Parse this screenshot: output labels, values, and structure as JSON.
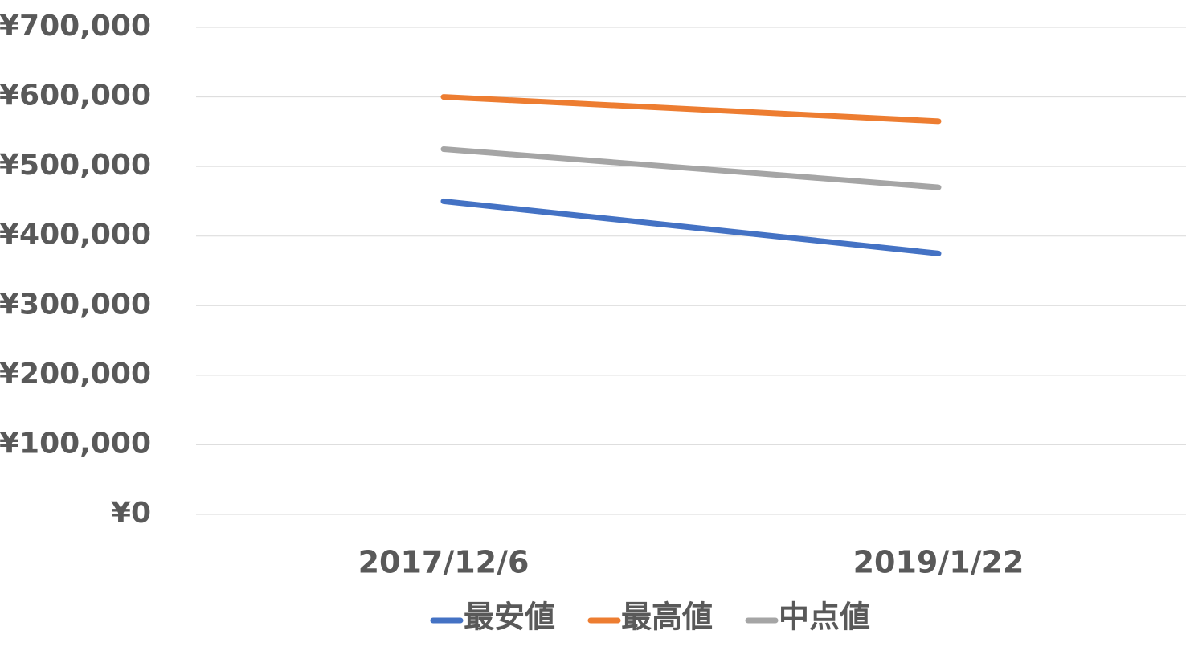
{
  "chart_data": {
    "type": "line",
    "categories": [
      "2017/12/6",
      "2019/1/22"
    ],
    "series": [
      {
        "name": "最安値",
        "color": "#4472c4",
        "values": [
          450000,
          375000
        ]
      },
      {
        "name": "最高値",
        "color": "#ed7d31",
        "values": [
          600000,
          565000
        ]
      },
      {
        "name": "中点値",
        "color": "#a5a5a5",
        "values": [
          525000,
          470000
        ]
      }
    ],
    "ylim": [
      0,
      700000
    ],
    "yticks": [
      {
        "value": 0,
        "label": "¥0"
      },
      {
        "value": 100000,
        "label": "¥100,000"
      },
      {
        "value": 200000,
        "label": "¥200,000"
      },
      {
        "value": 300000,
        "label": "¥300,000"
      },
      {
        "value": 400000,
        "label": "¥400,000"
      },
      {
        "value": 500000,
        "label": "¥500,000"
      },
      {
        "value": 600000,
        "label": "¥600,000"
      },
      {
        "value": 700000,
        "label": "¥700,000"
      }
    ],
    "grid": true,
    "legend": "bottom"
  }
}
